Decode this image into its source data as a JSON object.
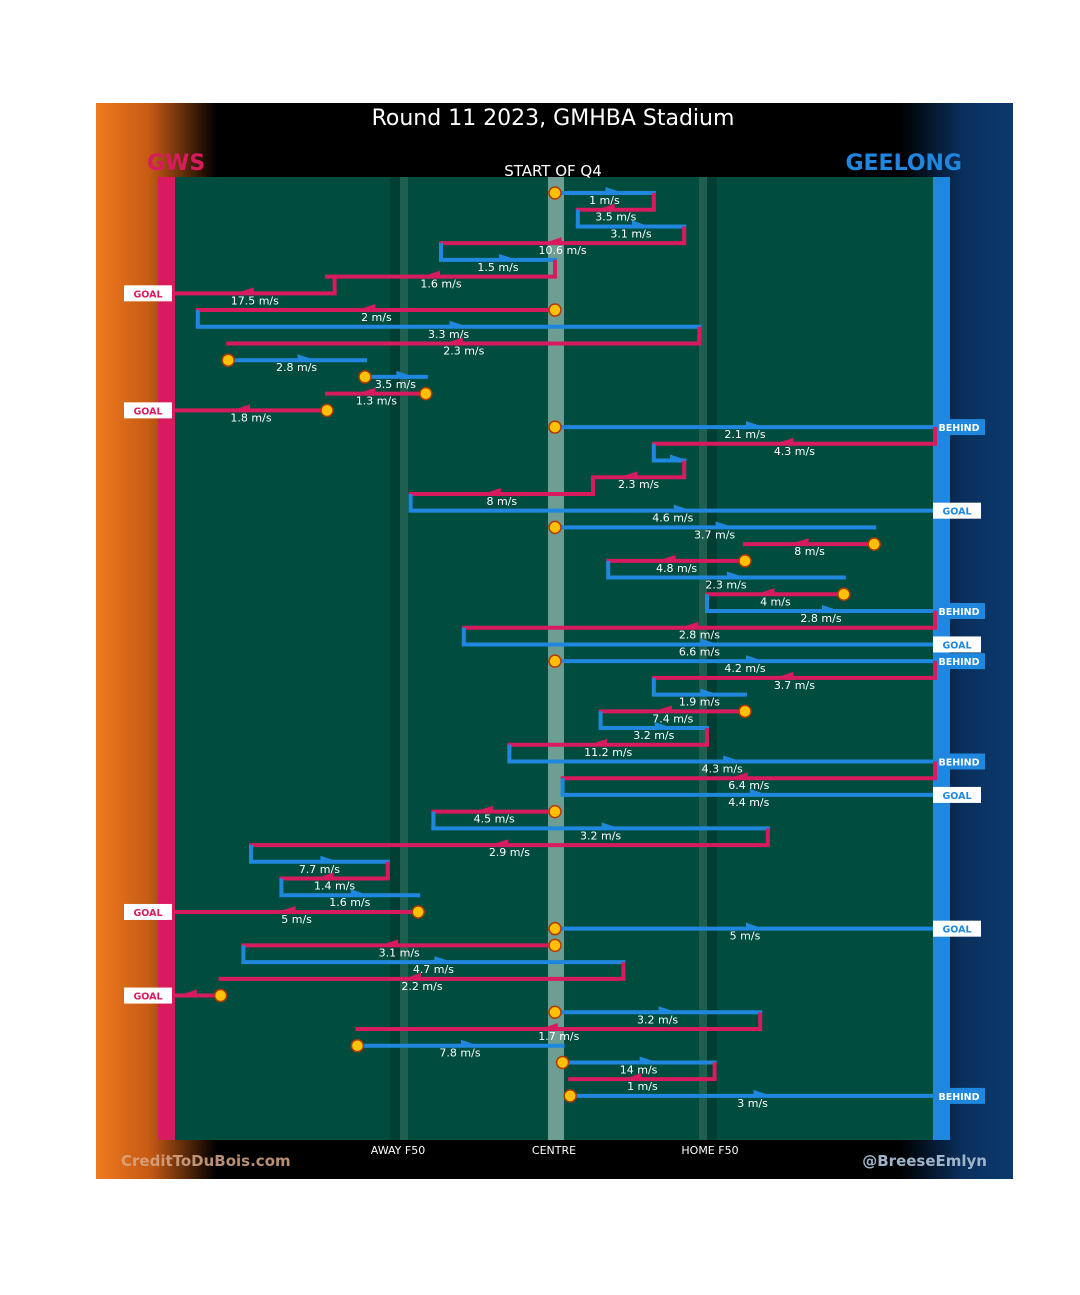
{
  "title": "Round 11 2023, GMHBA Stadium",
  "subtitle": "START OF Q4",
  "teams": {
    "left": {
      "name": "GWS",
      "color": "#d81b5e"
    },
    "right": {
      "name": "GEELONG",
      "color": "#1f88de"
    }
  },
  "colors": {
    "field": "#004d40",
    "left_glow": "#f07a1e",
    "right_glow": "#0b3a6e",
    "marker": "#ffc107"
  },
  "x_axis": {
    "labels": [
      "AWAY F50",
      "CENTRE",
      "HOME F50"
    ]
  },
  "credits": {
    "left": "CreditToDuBois.com",
    "right": "@BreeseEmlyn"
  },
  "chart_data": {
    "type": "line",
    "description_units": "x from 0 (GWS goal line) to 100 (Geelong goal line); centre at 50; rows in chronological order",
    "rows": [
      {
        "team": "GEE",
        "x1": 50,
        "x2": 63,
        "speed": "1 m/s",
        "start": true
      },
      {
        "team": "GWS",
        "x1": 63,
        "x2": 53,
        "speed": "3.5 m/s"
      },
      {
        "team": "GEE",
        "x1": 53,
        "x2": 67,
        "speed": "3.1 m/s"
      },
      {
        "team": "GWS",
        "x1": 67,
        "x2": 35,
        "speed": "10.6 m/s"
      },
      {
        "team": "GEE",
        "x1": 35,
        "x2": 50,
        "speed": "1.5 m/s"
      },
      {
        "team": "GWS",
        "x1": 50,
        "x2": 20,
        "speed": "1.6 m/s"
      },
      {
        "team": "GWS",
        "x1": 21,
        "x2": 0,
        "speed": "17.5 m/s",
        "end": "GOAL"
      },
      {
        "team": "GWS",
        "x1": 50,
        "x2": 3,
        "speed": "2 m/s",
        "start": true
      },
      {
        "team": "GEE",
        "x1": 3,
        "x2": 69,
        "speed": "3.3 m/s"
      },
      {
        "team": "GWS",
        "x1": 69,
        "x2": 7,
        "speed": "2.3 m/s"
      },
      {
        "team": "GEE",
        "x1": 7,
        "x2": 25,
        "speed": "2.8 m/s",
        "start": true
      },
      {
        "team": "GEE",
        "x1": 25,
        "x2": 33,
        "speed": "3.5 m/s",
        "start": true
      },
      {
        "team": "GWS",
        "x1": 33,
        "x2": 20,
        "speed": "1.3 m/s",
        "start": true
      },
      {
        "team": "GWS",
        "x1": 20,
        "x2": 0,
        "speed": "1.8 m/s",
        "end": "GOAL",
        "start": true
      },
      {
        "team": "GEE",
        "x1": 50,
        "x2": 100,
        "speed": "2.1 m/s",
        "end": "BEHIND",
        "start": true
      },
      {
        "team": "GWS",
        "x1": 100,
        "x2": 63,
        "speed": "4.3 m/s"
      },
      {
        "team": "GEE",
        "x1": 63,
        "x2": 67,
        "speed": ""
      },
      {
        "team": "GWS",
        "x1": 67,
        "x2": 55,
        "speed": "2.3 m/s"
      },
      {
        "team": "GWS",
        "x1": 55,
        "x2": 31,
        "speed": "8 m/s"
      },
      {
        "team": "GEE",
        "x1": 31,
        "x2": 100,
        "speed": "4.6 m/s",
        "end": "GOAL"
      },
      {
        "team": "GEE",
        "x1": 50,
        "x2": 92,
        "speed": "3.7 m/s",
        "start": true
      },
      {
        "team": "GWS",
        "x1": 92,
        "x2": 75,
        "speed": "8 m/s",
        "start": true
      },
      {
        "team": "GWS",
        "x1": 75,
        "x2": 57,
        "speed": "4.8 m/s",
        "start": true
      },
      {
        "team": "GEE",
        "x1": 57,
        "x2": 88,
        "speed": "2.3 m/s"
      },
      {
        "team": "GWS",
        "x1": 88,
        "x2": 70,
        "speed": "4 m/s",
        "start": true
      },
      {
        "team": "GEE",
        "x1": 70,
        "x2": 100,
        "speed": "2.8 m/s",
        "end": "BEHIND"
      },
      {
        "team": "GWS",
        "x1": 100,
        "x2": 38,
        "speed": "2.8 m/s"
      },
      {
        "team": "GEE",
        "x1": 38,
        "x2": 100,
        "speed": "6.6 m/s",
        "end": "GOAL"
      },
      {
        "team": "GEE",
        "x1": 50,
        "x2": 100,
        "speed": "4.2 m/s",
        "end": "BEHIND",
        "start": true
      },
      {
        "team": "GWS",
        "x1": 100,
        "x2": 63,
        "speed": "3.7 m/s"
      },
      {
        "team": "GEE",
        "x1": 63,
        "x2": 75,
        "speed": "1.9 m/s"
      },
      {
        "team": "GWS",
        "x1": 75,
        "x2": 56,
        "speed": "7.4 m/s",
        "start": true
      },
      {
        "team": "GEE",
        "x1": 56,
        "x2": 70,
        "speed": "3.2 m/s"
      },
      {
        "team": "GWS",
        "x1": 70,
        "x2": 44,
        "speed": "11.2 m/s"
      },
      {
        "team": "GEE",
        "x1": 44,
        "x2": 100,
        "speed": "4.3 m/s",
        "end": "BEHIND"
      },
      {
        "team": "GWS",
        "x1": 100,
        "x2": 51,
        "speed": "6.4 m/s"
      },
      {
        "team": "GEE",
        "x1": 51,
        "x2": 100,
        "speed": "4.4 m/s",
        "end": "GOAL"
      },
      {
        "team": "GWS",
        "x1": 50,
        "x2": 34,
        "speed": "4.5 m/s",
        "start": true
      },
      {
        "team": "GEE",
        "x1": 34,
        "x2": 78,
        "speed": "3.2 m/s"
      },
      {
        "team": "GWS",
        "x1": 78,
        "x2": 10,
        "speed": "2.9 m/s"
      },
      {
        "team": "GEE",
        "x1": 10,
        "x2": 28,
        "speed": "7.7 m/s"
      },
      {
        "team": "GWS",
        "x1": 28,
        "x2": 14,
        "speed": "1.4 m/s"
      },
      {
        "team": "GEE",
        "x1": 14,
        "x2": 32,
        "speed": "1.6 m/s"
      },
      {
        "team": "GWS",
        "x1": 32,
        "x2": 0,
        "speed": "5 m/s",
        "end": "GOAL",
        "start": true
      },
      {
        "team": "GEE",
        "x1": 50,
        "x2": 100,
        "speed": "5 m/s",
        "end": "GOAL",
        "start": true
      },
      {
        "team": "GWS",
        "x1": 50,
        "x2": 9,
        "speed": "3.1 m/s",
        "start": true
      },
      {
        "team": "GEE",
        "x1": 9,
        "x2": 59,
        "speed": "4.7 m/s"
      },
      {
        "team": "GWS",
        "x1": 59,
        "x2": 6,
        "speed": "2.2 m/s"
      },
      {
        "team": "GWS",
        "x1": 6,
        "x2": 0,
        "speed": "",
        "end": "GOAL",
        "start": true
      },
      {
        "team": "GEE",
        "x1": 50,
        "x2": 77,
        "speed": "3.2 m/s",
        "start": true
      },
      {
        "team": "GWS",
        "x1": 77,
        "x2": 24,
        "speed": "1.7 m/s"
      },
      {
        "team": "GEE",
        "x1": 24,
        "x2": 51,
        "speed": "7.8 m/s",
        "start": true
      },
      {
        "team": "GEE",
        "x1": 51,
        "x2": 71,
        "speed": "14 m/s",
        "start": true
      },
      {
        "team": "GWS",
        "x1": 71,
        "x2": 52,
        "speed": "1 m/s"
      },
      {
        "team": "GEE",
        "x1": 52,
        "x2": 100,
        "speed": "3 m/s",
        "end": "BEHIND",
        "start": true
      }
    ]
  }
}
